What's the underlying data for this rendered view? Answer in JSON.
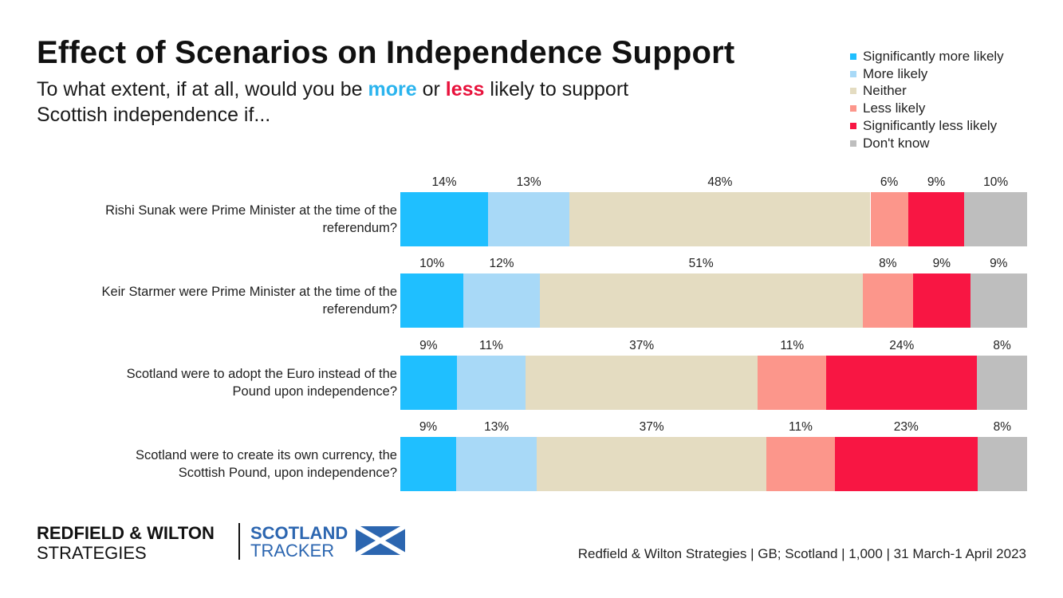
{
  "header": {
    "title": "Effect of Scenarios on Independence Support",
    "subtitle_part1": "To what extent, if at all, would you be ",
    "subtitle_more": "more",
    "subtitle_part2": " or ",
    "subtitle_less": "less",
    "subtitle_part3": " likely to support Scottish independence if..."
  },
  "chart_data": {
    "type": "bar",
    "orientation": "horizontal-stacked-100",
    "categories": [
      "Rishi Sunak were Prime Minister at the time of the referendum?",
      "Keir Starmer were Prime Minister at the time of the referendum?",
      "Scotland were to adopt the Euro instead of the Pound upon independence?",
      "Scotland were to create its own currency, the Scottish Pound, upon independence?"
    ],
    "series": [
      {
        "name": "Significantly more likely",
        "color": "#1fbfff",
        "values": [
          14,
          10,
          9,
          9
        ]
      },
      {
        "name": "More likely",
        "color": "#a8d9f7",
        "values": [
          13,
          12,
          11,
          13
        ]
      },
      {
        "name": "Neither",
        "color": "#e4dcc1",
        "values": [
          48,
          51,
          37,
          37
        ]
      },
      {
        "name": "Less likely",
        "color": "#fc968b",
        "values": [
          6,
          8,
          11,
          11
        ]
      },
      {
        "name": "Significantly less likely",
        "color": "#f81643",
        "values": [
          9,
          9,
          24,
          23
        ]
      },
      {
        "name": "Don't know",
        "color": "#bebebe",
        "values": [
          10,
          9,
          8,
          8
        ]
      }
    ],
    "value_suffix": "%",
    "legend_position": "top-right",
    "grid": false
  },
  "footer": {
    "brand_line1": "REDFIELD & WILTON",
    "brand_line2": "STRATEGIES",
    "tracker_line1": "SCOTLAND",
    "tracker_line2": "TRACKER",
    "source": "Redfield & Wilton Strategies | GB; Scotland | 1,000 | 31 March-1 April 2023",
    "flag_icon": "scotland-flag-icon"
  }
}
